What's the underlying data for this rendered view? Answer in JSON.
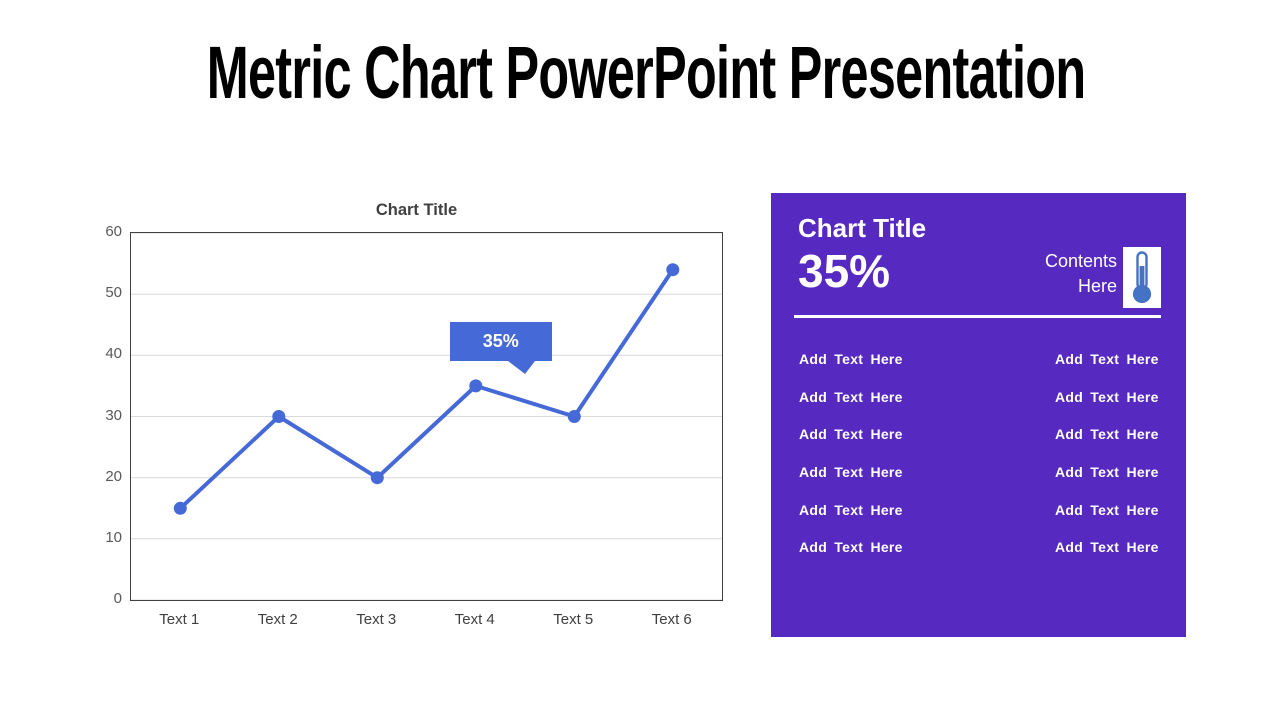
{
  "slide_title": "Metric Chart PowerPoint Presentation",
  "chart_data": {
    "type": "line",
    "title": "Chart Title",
    "categories": [
      "Text 1",
      "Text 2",
      "Text 3",
      "Text 4",
      "Text 5",
      "Text 6"
    ],
    "values": [
      15,
      30,
      20,
      35,
      30,
      54
    ],
    "xlabel": "",
    "ylabel": "",
    "ylim": [
      0,
      60
    ],
    "yticks": [
      0,
      10,
      20,
      30,
      40,
      50,
      60
    ],
    "grid": true,
    "legend": "none",
    "line_color": "#4569d6",
    "gridline_color": "#d9d9d9",
    "callout": {
      "text": "35%",
      "point_index": 3
    }
  },
  "panel": {
    "title": "Chart Title",
    "percentage": "35%",
    "contents_label": "Contents Here",
    "icon": "thermometer-icon",
    "left_items": [
      "Add Text Here",
      "Add Text Here",
      "Add Text Here",
      "Add Text Here",
      "Add Text Here",
      "Add Text Here"
    ],
    "right_items": [
      "Add Text Here",
      "Add Text Here",
      "Add Text Here",
      "Add Text Here",
      "Add Text Here",
      "Add Text Here"
    ],
    "colors": {
      "background": "#5629c1",
      "text": "#ffffff",
      "divider": "#ffffff",
      "icon_blue": "#4472c4",
      "icon_box": "#ffffff"
    }
  }
}
